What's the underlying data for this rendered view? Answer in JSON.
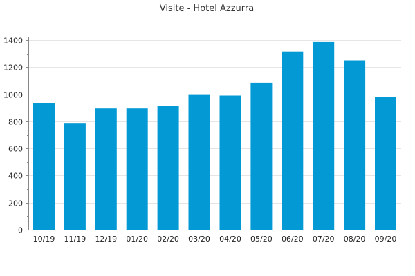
{
  "chart_data": {
    "type": "bar",
    "title": "Visite - Hotel Azzurra",
    "xlabel": "",
    "ylabel": "",
    "categories": [
      "10/19",
      "11/19",
      "12/19",
      "01/20",
      "02/20",
      "03/20",
      "04/20",
      "05/20",
      "06/20",
      "07/20",
      "08/20",
      "09/20"
    ],
    "series": [
      {
        "values": [
          935,
          788,
          895,
          895,
          915,
          1000,
          990,
          1085,
          1315,
          1385,
          1250,
          980
        ]
      }
    ],
    "ylim": [
      0,
      1400
    ],
    "yticks": [
      0,
      200,
      400,
      600,
      800,
      1000,
      1200,
      1400
    ],
    "grid": true,
    "legend": "none",
    "colors": {
      "bar": "#0399d4",
      "grid": "#e5e5e5",
      "axis": "#888888"
    }
  }
}
